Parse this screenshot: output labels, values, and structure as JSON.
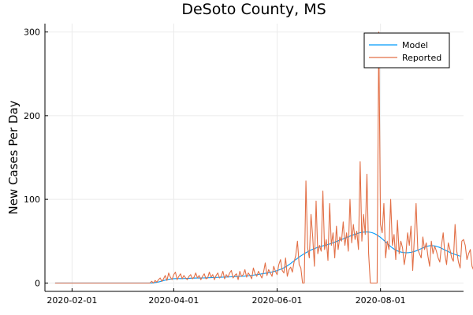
{
  "chart_data": {
    "type": "line",
    "title": "DeSoto County, MS",
    "xlabel": "",
    "ylabel": "New Cases Per Day",
    "x_start": "2020-01-22",
    "x_end": "2020-09-13",
    "xlim": [
      "2020-01-16",
      "2020-09-19"
    ],
    "ylim": [
      -10,
      310
    ],
    "x_ticks": [
      "2020-02-01",
      "2020-04-01",
      "2020-06-01",
      "2020-08-01"
    ],
    "y_ticks": [
      0,
      100,
      200,
      300
    ],
    "grid": true,
    "legend_position": "top-right",
    "series": [
      {
        "name": "Model",
        "color": "#009AFA",
        "values": [
          0,
          0,
          0,
          0,
          0,
          0,
          0,
          0,
          0,
          0,
          0,
          0,
          0,
          0,
          0,
          0,
          0,
          0,
          0,
          0,
          0,
          0,
          0,
          0,
          0,
          0,
          0,
          0,
          0,
          0,
          0,
          0,
          0,
          0,
          0,
          0,
          0,
          0,
          0,
          0,
          0,
          0,
          0,
          0,
          0,
          0,
          0,
          0,
          0,
          0,
          0,
          0,
          0,
          0,
          0,
          0,
          0,
          0.1,
          0.2,
          0.5,
          0.8,
          1.2,
          1.7,
          2.3,
          2.9,
          3.5,
          4.0,
          4.4,
          4.7,
          5.0,
          5.1,
          5.2,
          5.3,
          5.3,
          5.2,
          5.2,
          5.3,
          5.4,
          5.5,
          5.6,
          5.7,
          5.8,
          5.8,
          5.9,
          5.9,
          5.9,
          6.0,
          6.0,
          6.1,
          6.2,
          6.3,
          6.3,
          6.4,
          6.5,
          6.6,
          6.6,
          6.7,
          6.8,
          6.9,
          7.0,
          7.0,
          7.1,
          7.2,
          7.3,
          7.4,
          7.5,
          7.6,
          7.7,
          7.8,
          7.9,
          8.0,
          8.1,
          8.3,
          8.5,
          8.7,
          8.9,
          9.1,
          9.4,
          9.7,
          10.0,
          10.3,
          10.6,
          11.0,
          11.3,
          11.6,
          11.9,
          12.3,
          12.7,
          13.2,
          13.7,
          14.2,
          14.8,
          15.5,
          16.3,
          17.2,
          18.2,
          19.3,
          20.5,
          21.9,
          23.4,
          25.0,
          26.5,
          28.0,
          29.5,
          31.0,
          32.4,
          33.7,
          35.0,
          36.2,
          37.3,
          38.4,
          39.4,
          40.3,
          41.1,
          41.9,
          42.6,
          43.3,
          43.9,
          44.4,
          44.9,
          45.4,
          46.0,
          46.6,
          47.3,
          48.0,
          48.8,
          49.6,
          50.4,
          51.2,
          52.0,
          52.8,
          53.6,
          54.4,
          55.2,
          56.0,
          56.8,
          57.6,
          58.3,
          59.0,
          59.6,
          60.1,
          60.5,
          60.8,
          61.0,
          61.0,
          60.9,
          60.6,
          60.1,
          59.4,
          58.5,
          57.4,
          56.0,
          54.5,
          52.8,
          51.0,
          49.1,
          47.2,
          45.4,
          43.6,
          42.0,
          40.6,
          39.4,
          38.4,
          37.6,
          37.0,
          36.6,
          36.3,
          36.2,
          36.2,
          36.4,
          36.7,
          37.1,
          37.7,
          38.4,
          39.2,
          40.1,
          41.0,
          41.9,
          42.8,
          43.5,
          44.1,
          44.5,
          44.7,
          44.6,
          44.3,
          43.8,
          43.2,
          42.4,
          41.5,
          40.5,
          39.5,
          38.5,
          37.5,
          36.6,
          35.7,
          34.9,
          34.1,
          33.4,
          32.7,
          32.1
        ]
      },
      {
        "name": "Reported",
        "color": "#E26F46",
        "values": [
          0,
          0,
          0,
          0,
          0,
          0,
          0,
          0,
          0,
          0,
          0,
          0,
          0,
          0,
          0,
          0,
          0,
          0,
          0,
          0,
          0,
          0,
          0,
          0,
          0,
          0,
          0,
          0,
          0,
          0,
          0,
          0,
          0,
          0,
          0,
          0,
          0,
          0,
          0,
          0,
          0,
          0,
          0,
          0,
          0,
          0,
          0,
          0,
          0,
          0,
          0,
          0,
          0,
          0,
          0,
          0,
          0,
          2,
          0,
          3,
          1,
          4,
          6,
          2,
          5,
          9,
          3,
          12,
          7,
          4,
          10,
          13,
          4,
          8,
          11,
          5,
          9,
          6,
          4,
          8,
          10,
          5,
          7,
          12,
          6,
          9,
          4,
          8,
          11,
          5,
          6,
          13,
          7,
          10,
          4,
          9,
          12,
          6,
          8,
          14,
          5,
          10,
          7,
          12,
          15,
          6,
          9,
          11,
          4,
          14,
          8,
          10,
          16,
          7,
          12,
          9,
          5,
          18,
          11,
          8,
          14,
          10,
          6,
          13,
          24,
          9,
          16,
          12,
          8,
          20,
          14,
          10,
          22,
          28,
          15,
          12,
          30,
          8,
          16,
          19,
          13,
          25,
          33,
          50,
          22,
          18,
          0,
          0,
          122,
          42,
          30,
          82,
          55,
          20,
          98,
          35,
          45,
          38,
          110,
          40,
          52,
          27,
          95,
          45,
          60,
          30,
          68,
          40,
          55,
          50,
          73,
          45,
          60,
          38,
          100,
          48,
          70,
          52,
          62,
          40,
          145,
          50,
          82,
          58,
          130,
          35,
          0,
          0,
          0,
          0,
          0,
          300,
          70,
          60,
          95,
          30,
          50,
          40,
          100,
          45,
          58,
          28,
          75,
          35,
          50,
          42,
          22,
          35,
          60,
          45,
          68,
          15,
          55,
          95,
          40,
          35,
          30,
          55,
          40,
          48,
          32,
          20,
          50,
          35,
          44,
          38,
          30,
          25,
          45,
          60,
          34,
          22,
          48,
          40,
          30,
          26,
          70,
          38,
          25,
          18,
          50,
          52,
          45,
          28,
          35,
          40,
          20,
          15
        ]
      }
    ]
  }
}
